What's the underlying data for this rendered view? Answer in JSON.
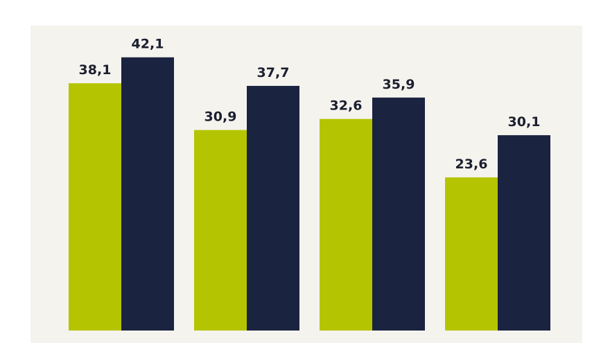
{
  "chart_data": {
    "type": "bar",
    "categories": [
      "",
      "",
      "",
      ""
    ],
    "series": [
      {
        "values": [
          38.1,
          30.9,
          32.6,
          23.6
        ]
      },
      {
        "values": [
          42.1,
          37.7,
          35.9,
          30.1
        ]
      }
    ],
    "value_labels": [
      [
        "38,1",
        "30,9",
        "32,6",
        "23,6"
      ],
      [
        "42,1",
        "37,7",
        "35,9",
        "30,1"
      ]
    ],
    "ylim": [
      0,
      50
    ],
    "grid": false,
    "colors": {
      "series": [
        "#b5c400",
        "#1a2340"
      ],
      "panel_background": "#f4f3ee",
      "label_text": "#1b1f2e"
    }
  }
}
